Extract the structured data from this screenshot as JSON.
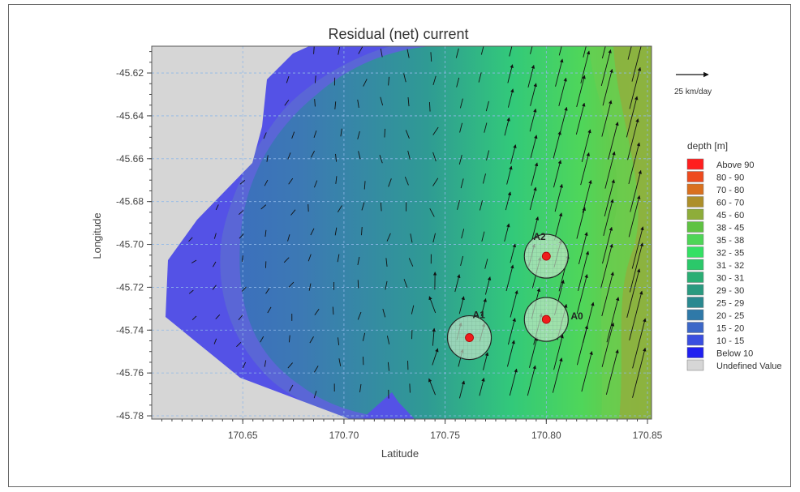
{
  "chart_data": {
    "type": "contour-vector-map",
    "title": "Residual (net) current",
    "xlabel": "Latitude",
    "ylabel": "Longitude",
    "xlim": [
      170.605,
      170.852
    ],
    "ylim": [
      -45.7815,
      -45.6075
    ],
    "x_ticks": [
      "170.65",
      "170.70",
      "170.75",
      "170.80",
      "170.85"
    ],
    "x_tick_values": [
      170.65,
      170.7,
      170.75,
      170.8,
      170.85
    ],
    "y_ticks": [
      "-45.62",
      "-45.64",
      "-45.66",
      "-45.68",
      "-45.70",
      "-45.72",
      "-45.74",
      "-45.76",
      "-45.78"
    ],
    "y_tick_values": [
      -45.62,
      -45.64,
      -45.66,
      -45.68,
      -45.7,
      -45.72,
      -45.74,
      -45.76,
      -45.78
    ],
    "grid": true,
    "vector_scale_label": "25 km/day",
    "legend": {
      "title": "depth [m]",
      "entries": [
        {
          "label": "Above 90",
          "color": "#ff1f1f"
        },
        {
          "label": "80 - 90",
          "color": "#ee4a1e"
        },
        {
          "label": "70 - 80",
          "color": "#d9701f"
        },
        {
          "label": "60 - 70",
          "color": "#ad8f2a"
        },
        {
          "label": "45 - 60",
          "color": "#8ead3a"
        },
        {
          "label": "38 - 45",
          "color": "#5fc242"
        },
        {
          "label": "35 - 38",
          "color": "#4ed556"
        },
        {
          "label": "32 - 35",
          "color": "#34e064"
        },
        {
          "label": "31 - 32",
          "color": "#2bc86a"
        },
        {
          "label": "30 - 31",
          "color": "#2aae74"
        },
        {
          "label": "29 - 30",
          "color": "#2a9a80"
        },
        {
          "label": "25 - 29",
          "color": "#2a8990"
        },
        {
          "label": "20 - 25",
          "color": "#2f79a8"
        },
        {
          "label": "15 - 20",
          "color": "#3c67c8"
        },
        {
          "label": "10 - 15",
          "color": "#3a4fe0"
        },
        {
          "label": "Below 10",
          "color": "#1f1ff0"
        },
        {
          "label": "Undefined Value",
          "color": "#d6d6d6"
        }
      ]
    },
    "stations": [
      {
        "name": "A2",
        "x": 170.8,
        "y": -45.7055
      },
      {
        "name": "A1",
        "x": 170.762,
        "y": -45.7435
      },
      {
        "name": "A0",
        "x": 170.8,
        "y": -45.735
      }
    ]
  }
}
